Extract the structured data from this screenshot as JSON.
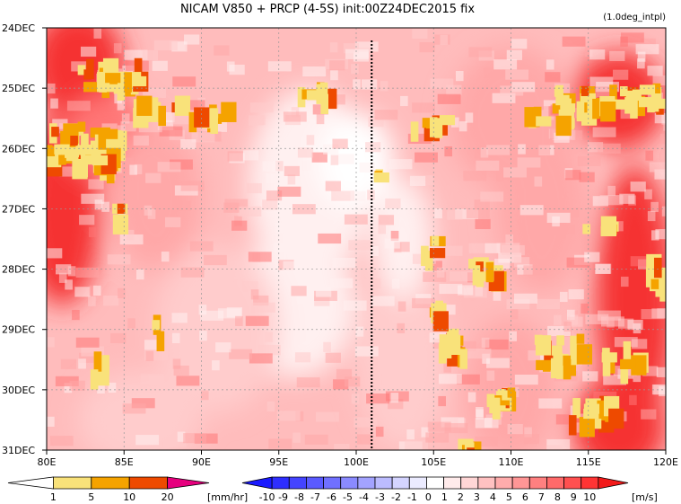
{
  "chart_data": {
    "type": "heatmap",
    "title": "NICAM   V850 + PRCP (4-5S) init:00Z24DEC2015 fix",
    "subtitle": "(1.0deg_intpl)",
    "x_ticks": [
      "80E",
      "85E",
      "90E",
      "95E",
      "100E",
      "105E",
      "110E",
      "115E",
      "120E"
    ],
    "x_values": [
      80,
      85,
      90,
      95,
      100,
      105,
      110,
      115,
      120
    ],
    "xlim": [
      80,
      120
    ],
    "y_ticks": [
      "24DEC",
      "25DEC",
      "26DEC",
      "27DEC",
      "28DEC",
      "29DEC",
      "30DEC",
      "31DEC"
    ],
    "y_values": [
      24,
      25,
      26,
      27,
      28,
      29,
      30,
      31
    ],
    "ylim": [
      24,
      31
    ],
    "grid": true,
    "vertical_marker_lon": 101,
    "precip_colorbar": {
      "labels": [
        "1",
        "5",
        "10",
        "20"
      ],
      "unit": "[mm/hr]",
      "colors": [
        "#ffffff",
        "#f9e27a",
        "#f5a300",
        "#ee4a00",
        "#e6007e"
      ]
    },
    "wind_colorbar": {
      "labels": [
        "-10",
        "-9",
        "-8",
        "-7",
        "-6",
        "-5",
        "-4",
        "-3",
        "-2",
        "-1",
        "0",
        "1",
        "2",
        "3",
        "4",
        "5",
        "6",
        "7",
        "8",
        "9",
        "10"
      ],
      "unit": "[m/s]",
      "colors": [
        "#1a1aff",
        "#2e2eff",
        "#4444ff",
        "#5a5aff",
        "#7070ff",
        "#8a8aff",
        "#a3a3ff",
        "#bcbcff",
        "#d4d4ff",
        "#ebebff",
        "#ffffff",
        "#ffebeb",
        "#ffd6d6",
        "#ffc1c1",
        "#ffacac",
        "#ff9696",
        "#ff8080",
        "#ff6a6a",
        "#ff5050",
        "#ff3434",
        "#f21a1a"
      ]
    },
    "field_colors": {
      "v_weak": "#fff0f0",
      "v_light": "#ffcccc",
      "v_mid": "#ffa8a8",
      "v_strong": "#ff7676",
      "v_max": "#f53030",
      "prcp_light": "#f9e27a",
      "prcp_mid": "#f5a300",
      "prcp_heavy": "#ee4a00"
    }
  }
}
